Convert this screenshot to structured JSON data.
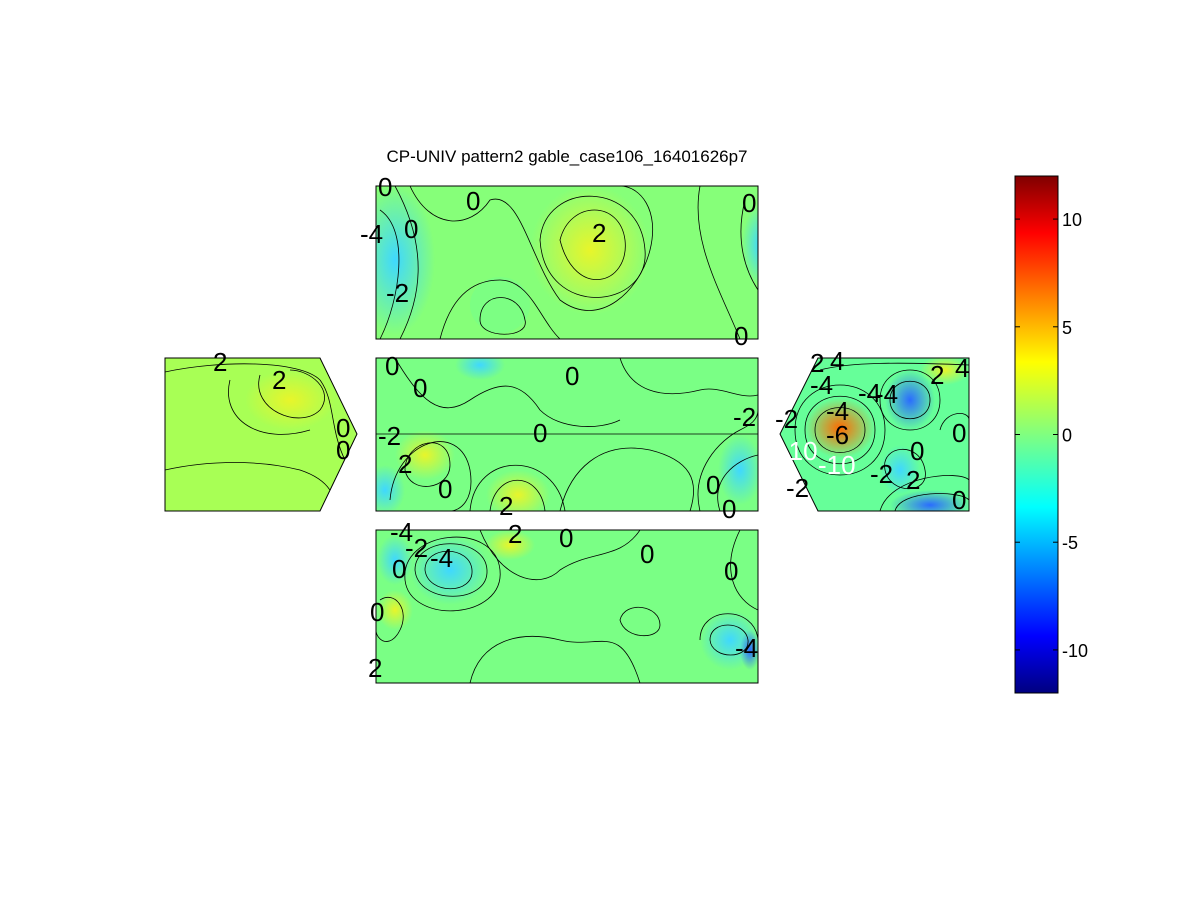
{
  "figure": {
    "title": "CP-UNIV pattern2 gable_case106_16401626p7"
  },
  "chart_data": {
    "type": "heatmap",
    "title": "CP-UNIV pattern2 gable_case106_16401626p7",
    "xlabel": "",
    "ylabel": "",
    "colormap": "jet",
    "clim": [
      -12,
      12
    ],
    "colorbar": {
      "ticks": [
        10,
        5,
        0,
        -5,
        -10
      ],
      "tick_labels": [
        "10",
        "5",
        "0",
        "-5",
        "-10"
      ],
      "colors": [
        "#000080",
        "#0000ff",
        "#0080ff",
        "#00ffff",
        "#80ff80",
        "#ffff00",
        "#ff8000",
        "#ff0000",
        "#800000"
      ]
    },
    "panels": [
      {
        "name": "roof-top",
        "background_value": 0.5,
        "contour_labels": [
          {
            "text": "0"
          },
          {
            "text": "0"
          },
          {
            "text": "-4"
          },
          {
            "text": "0"
          },
          {
            "text": "2"
          },
          {
            "text": "0"
          },
          {
            "text": "-2"
          },
          {
            "text": "0"
          }
        ]
      },
      {
        "name": "left-gable",
        "background_value": 1.2,
        "contour_labels": [
          {
            "text": "2"
          },
          {
            "text": "2"
          },
          {
            "text": "0"
          },
          {
            "text": "0"
          }
        ]
      },
      {
        "name": "wall-middle",
        "background_value": 0.2,
        "contour_labels": [
          {
            "text": "0"
          },
          {
            "text": "0"
          },
          {
            "text": "0"
          },
          {
            "text": "-2"
          },
          {
            "text": "0"
          },
          {
            "text": "2"
          },
          {
            "text": "0"
          },
          {
            "text": "2"
          },
          {
            "text": "0"
          },
          {
            "text": "0"
          },
          {
            "text": "-2"
          }
        ]
      },
      {
        "name": "right-gable",
        "background_value": -1.0,
        "contour_labels": [
          {
            "text": "2"
          },
          {
            "text": "4"
          },
          {
            "text": "4"
          },
          {
            "text": "2"
          },
          {
            "text": "-4"
          },
          {
            "text": "-4"
          },
          {
            "text": "-2"
          },
          {
            "text": "-6"
          },
          {
            "text": "-4"
          },
          {
            "text": "-10"
          },
          {
            "text": "-10"
          },
          {
            "text": "-2"
          },
          {
            "text": "0"
          },
          {
            "text": "2"
          },
          {
            "text": "0"
          },
          {
            "text": "0"
          },
          {
            "text": "-2"
          },
          {
            "text": "-4"
          }
        ]
      },
      {
        "name": "roof-bottom",
        "background_value": 0.2,
        "contour_labels": [
          {
            "text": "-4"
          },
          {
            "text": "-2"
          },
          {
            "text": "-4"
          },
          {
            "text": "2"
          },
          {
            "text": "0"
          },
          {
            "text": "0"
          },
          {
            "text": "0"
          },
          {
            "text": "0"
          },
          {
            "text": "0"
          },
          {
            "text": "2"
          },
          {
            "text": "-4"
          }
        ]
      }
    ]
  }
}
